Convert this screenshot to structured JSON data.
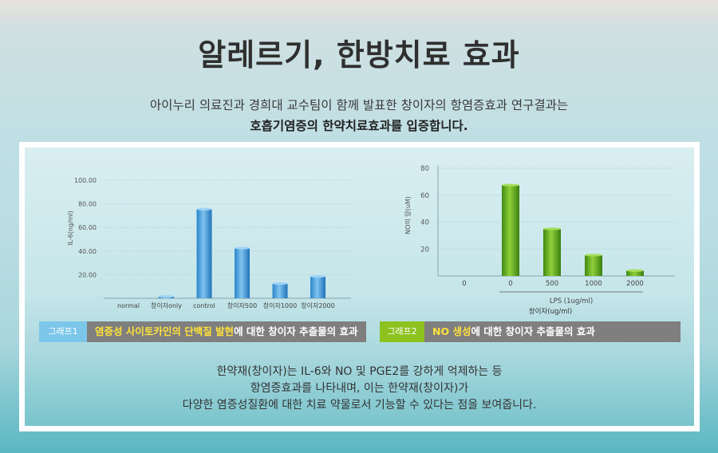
{
  "header": {
    "title": "알레르기, 한방치료 효과",
    "subtitle_line1": "아이누리 의료진과 경희대 교수팀이 함께 발표한 창이자의 항염증효과 연구결과는",
    "subtitle_line2": "호흡기염증의 한약치료효과를 입증합니다."
  },
  "captions": [
    {
      "tag": "그래프1",
      "highlight": "염증성 사이토카인의 단백질 발현",
      "rest": "에 대한 창이자 추출물의 효과"
    },
    {
      "tag": "그래프2",
      "highlight": "NO 생성",
      "rest": "에 대한 창이자 추출물의 효과"
    }
  ],
  "body": {
    "line1": "한약재(창이자)는 IL-6와 NO 및 PGE2를 강하게 억제하는 등",
    "line2": "항염증효과를 나타내며, 이는 한약재(창이자)가",
    "line3": "다양한 염증성질환에 대한 치료 약물로서 기능할 수 있다는 점을 보여줍니다."
  },
  "colors": {
    "blue_bar": "#3a9ad9",
    "green_bar": "#5aa51d",
    "tag1": "#7cc6ea",
    "tag2": "#8dc21f",
    "caption_bg": "#7f7f7f",
    "highlight": "#ffe13a"
  },
  "chart_data": [
    {
      "type": "bar",
      "ylabel": "IL-6(ng/ml)",
      "ylim": [
        0,
        100
      ],
      "yticks": [
        "100.00",
        "80.00",
        "60.00",
        "40.00",
        "20.00"
      ],
      "categories": [
        "normal",
        "창이자only",
        "control",
        "창이자500",
        "창이자1000",
        "창이자2000"
      ],
      "values": [
        0,
        1.5,
        75.5,
        42.5,
        12.5,
        18.5
      ],
      "grid": true
    },
    {
      "type": "bar",
      "ylabel": "NO의 양(uM)",
      "ylim": [
        0,
        80
      ],
      "yticks": [
        "80",
        "60",
        "40",
        "20"
      ],
      "categories": [
        "0",
        "0",
        "500",
        "1000",
        "2000"
      ],
      "values": [
        0,
        67.5,
        35,
        15.5,
        4
      ],
      "xlabel_group": "LPS (1ug/ml)",
      "xlabel": "창이자(ug/ml)",
      "grid": true
    }
  ]
}
